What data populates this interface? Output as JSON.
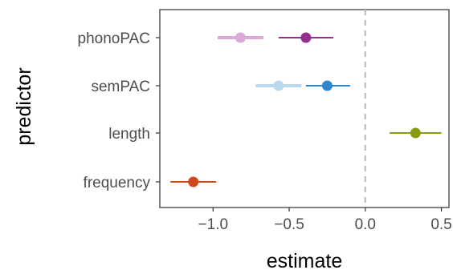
{
  "chart_data": {
    "type": "scatter",
    "subtype": "forest-plot",
    "xlabel": "estimate",
    "ylabel": "predictor",
    "xlim": [
      -1.35,
      0.55
    ],
    "x_ticks": [
      {
        "value": -1.0,
        "label": "−1.0"
      },
      {
        "value": -0.5,
        "label": "−0.5"
      },
      {
        "value": 0.0,
        "label": "0.0"
      },
      {
        "value": 0.5,
        "label": "0.5"
      }
    ],
    "categories": [
      "phonoPAC",
      "semPAC",
      "length",
      "frequency"
    ],
    "reference_line": {
      "x": 0,
      "style": "dashed",
      "color": "#bfbfbf"
    },
    "grid": false,
    "legend": "none",
    "points": [
      {
        "predictor": "phonoPAC",
        "estimate": -0.82,
        "ci": [
          -0.97,
          -0.67
        ],
        "color": "#dca9d9",
        "row_offset": 0
      },
      {
        "predictor": "phonoPAC",
        "estimate": -0.39,
        "ci": [
          -0.57,
          -0.21
        ],
        "color": "#92308f",
        "row_offset": 0
      },
      {
        "predictor": "semPAC",
        "estimate": -0.57,
        "ci": [
          -0.72,
          -0.42
        ],
        "color": "#b9d9ee",
        "row_offset": 0
      },
      {
        "predictor": "semPAC",
        "estimate": -0.25,
        "ci": [
          -0.39,
          -0.1
        ],
        "color": "#2f86cf",
        "row_offset": 0
      },
      {
        "predictor": "length",
        "estimate": 0.33,
        "ci": [
          0.16,
          0.5
        ],
        "color": "#8c9a12",
        "row_offset": 0
      },
      {
        "predictor": "frequency",
        "estimate": -1.13,
        "ci": [
          -1.28,
          -0.98
        ],
        "color": "#cf4a18",
        "row_offset": 0
      }
    ]
  }
}
